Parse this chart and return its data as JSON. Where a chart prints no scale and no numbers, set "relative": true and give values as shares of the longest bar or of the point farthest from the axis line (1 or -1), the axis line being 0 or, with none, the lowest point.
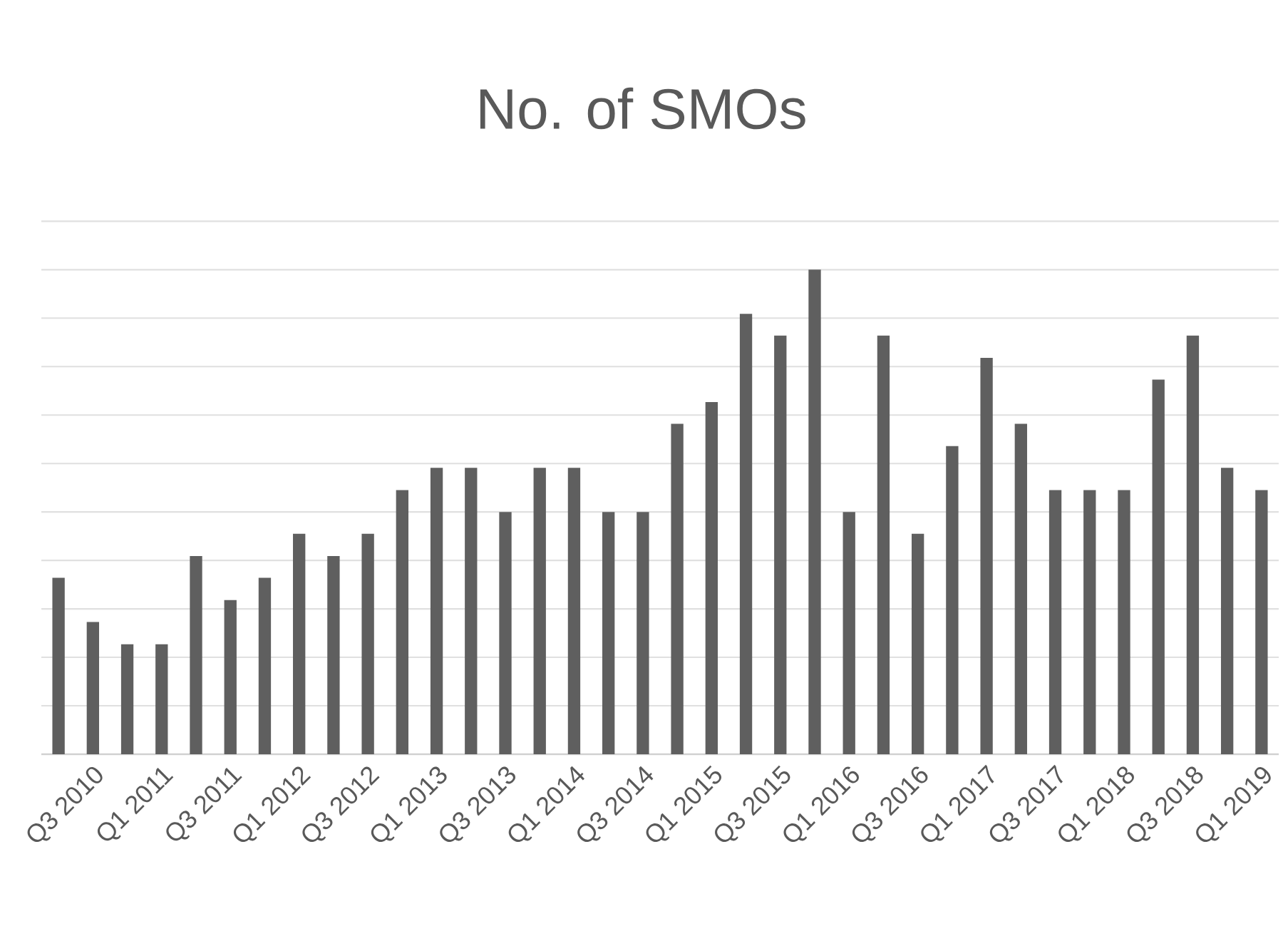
{
  "chart_data": {
    "type": "bar",
    "title": "No. of SMOs",
    "relative": true,
    "grid": "y",
    "color": "#5f5f5f",
    "categories": [
      null,
      "Q3 2010",
      null,
      "Q1 2011",
      null,
      "Q3 2011",
      null,
      "Q1 2012",
      null,
      "Q3 2012",
      null,
      "Q1 2013",
      null,
      "Q3 2013",
      null,
      "Q1 2014",
      null,
      "Q3 2014",
      null,
      "Q1 2015",
      null,
      "Q3 2015",
      null,
      "Q1 2016",
      null,
      "Q3 2016",
      null,
      "Q1 2017",
      null,
      "Q3 2017",
      null,
      "Q1 2018",
      null,
      "Q3 2018",
      null,
      "Q1 2019"
    ],
    "values": [
      0.364,
      0.273,
      0.227,
      0.227,
      0.409,
      0.318,
      0.364,
      0.455,
      0.409,
      0.455,
      0.545,
      0.591,
      0.591,
      0.5,
      0.591,
      0.591,
      0.5,
      0.5,
      0.682,
      0.727,
      0.909,
      0.864,
      1,
      0.5,
      0.864,
      0.455,
      0.636,
      0.818,
      0.682,
      0.545,
      0.545,
      0.545,
      0.773,
      0.864,
      0.591,
      0.545
    ]
  }
}
